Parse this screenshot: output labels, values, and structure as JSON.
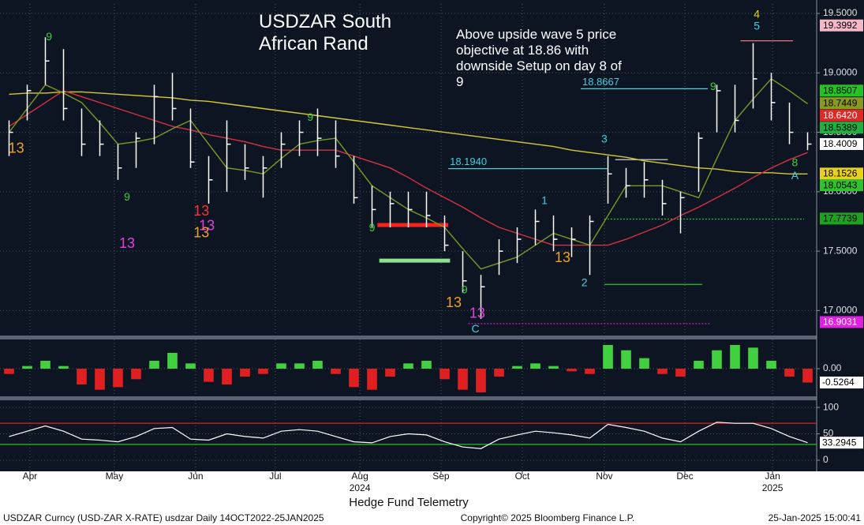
{
  "chart_data": [
    {
      "type": "ohlc",
      "title": "USDZAR South African Rand",
      "annotation": "Above upside wave 5 price objective at 18.86 with downside Setup on day 8 of 9",
      "xlim": [
        -0.5,
        44.5
      ],
      "ylim": [
        16.79,
        19.58
      ],
      "yticks": [
        {
          "value": 17,
          "label": "17.0000"
        },
        {
          "value": 17.5,
          "label": "17.5000"
        },
        {
          "value": 18,
          "label": "18.0000"
        },
        {
          "value": 18.5,
          "label": "18.5000"
        },
        {
          "value": 19,
          "label": "19.0000"
        },
        {
          "value": 19.5,
          "label": "19.5000"
        }
      ],
      "grid": true,
      "bar_color": "#ffffff",
      "x": [
        0,
        1,
        2,
        3,
        4,
        5,
        6,
        7,
        8,
        9,
        10,
        11,
        12,
        13,
        14,
        15,
        16,
        17,
        18,
        19,
        20,
        21,
        22,
        23,
        24,
        25,
        26,
        27,
        28,
        29,
        30,
        31,
        32,
        33,
        34,
        35,
        36,
        37,
        38,
        39,
        40,
        41,
        42,
        43,
        44
      ],
      "high": [
        18.6,
        18.9,
        19.3,
        19.2,
        18.7,
        18.6,
        18.4,
        18.5,
        18.9,
        19.0,
        18.7,
        18.3,
        18.6,
        18.4,
        18.3,
        18.5,
        18.6,
        18.7,
        18.6,
        18.3,
        18.05,
        18.0,
        18.0,
        18.0,
        17.8,
        17.5,
        17.3,
        17.6,
        17.7,
        17.85,
        17.8,
        17.7,
        17.8,
        18.3,
        18.2,
        18.25,
        18.1,
        18.0,
        18.5,
        18.9,
        18.9,
        19.25,
        19.0,
        18.75,
        18.5
      ],
      "low": [
        18.3,
        18.6,
        18.9,
        18.6,
        18.3,
        18.3,
        18.1,
        18.2,
        18.4,
        18.6,
        18.2,
        17.9,
        18.0,
        18.1,
        17.95,
        18.2,
        18.3,
        18.3,
        18.2,
        17.9,
        17.7,
        17.7,
        17.7,
        17.7,
        17.5,
        17.15,
        16.93,
        17.3,
        17.4,
        17.55,
        17.5,
        17.45,
        17.3,
        17.9,
        17.95,
        17.95,
        17.8,
        17.65,
        18.0,
        18.5,
        18.5,
        18.7,
        18.6,
        18.4,
        18.35
      ],
      "close": [
        18.5,
        18.85,
        19.1,
        18.7,
        18.4,
        18.4,
        18.2,
        18.45,
        18.8,
        18.7,
        18.25,
        18.1,
        18.4,
        18.2,
        18.2,
        18.4,
        18.5,
        18.45,
        18.3,
        17.95,
        17.85,
        17.9,
        17.85,
        17.8,
        17.55,
        17.25,
        17.2,
        17.5,
        17.6,
        17.75,
        17.6,
        17.6,
        17.75,
        18.15,
        18.05,
        18.1,
        17.9,
        17.95,
        18.45,
        18.85,
        18.6,
        18.95,
        18.75,
        18.5,
        18.4009
      ],
      "series": [
        {
          "color": "#d8c832",
          "values": [
            18.82,
            18.83,
            18.83,
            18.84,
            18.84,
            18.83,
            18.82,
            18.81,
            18.8,
            18.79,
            18.77,
            18.76,
            18.74,
            18.72,
            18.7,
            18.68,
            18.66,
            18.64,
            18.62,
            18.6,
            18.58,
            18.56,
            18.54,
            18.52,
            18.5,
            18.48,
            18.46,
            18.44,
            18.42,
            18.4,
            18.38,
            18.35,
            18.33,
            18.31,
            18.29,
            18.26,
            18.24,
            18.22,
            18.2,
            18.19,
            18.17,
            18.16,
            18.16,
            18.15,
            18.15
          ]
        },
        {
          "color": "#d83040",
          "values": [
            18.55,
            18.65,
            18.75,
            18.85,
            18.8,
            18.75,
            18.7,
            18.65,
            18.6,
            18.55,
            18.52,
            18.48,
            18.45,
            18.42,
            18.38,
            18.35,
            18.35,
            18.35,
            18.35,
            18.3,
            18.25,
            18.2,
            18.12,
            18.03,
            17.95,
            17.87,
            17.78,
            17.7,
            17.65,
            17.6,
            17.55,
            17.55,
            17.55,
            17.55,
            17.6,
            17.66,
            17.72,
            17.8,
            17.87,
            17.95,
            18.03,
            18.12,
            18.2,
            18.27,
            18.33
          ]
        },
        {
          "color": "#7a9a28",
          "values": [
            18.5,
            18.7,
            18.9,
            18.83,
            18.75,
            18.58,
            18.4,
            18.42,
            18.45,
            18.53,
            18.6,
            18.4,
            18.2,
            18.18,
            18.15,
            18.28,
            18.4,
            18.43,
            18.45,
            18.25,
            18.05,
            17.95,
            17.85,
            17.78,
            17.7,
            17.52,
            17.35,
            17.4,
            17.45,
            17.55,
            17.65,
            17.6,
            17.55,
            17.8,
            18.05,
            18.05,
            18.05,
            18.0,
            17.95,
            18.28,
            18.6,
            18.78,
            18.95,
            18.85,
            18.74
          ]
        }
      ],
      "levels": [
        {
          "value": 18.8667,
          "x0": 31.5,
          "x1": 38.5,
          "color": "#40d0e0",
          "style": "solid",
          "label": "18.8667"
        },
        {
          "value": 18.194,
          "x0": 24.2,
          "x1": 33,
          "color": "#40d0e0",
          "style": "solid",
          "label": "18.1940"
        },
        {
          "value": 17.72,
          "x0": 20.3,
          "x1": 24.2,
          "color": "#ff2020",
          "style": "thick"
        },
        {
          "value": 17.42,
          "x0": 20.4,
          "x1": 24.3,
          "color": "#90e090",
          "style": "thick"
        },
        {
          "value": 16.89,
          "x0": 25.3,
          "x1": 38.6,
          "color": "#e020e0",
          "style": "dotted"
        },
        {
          "value": 17.77,
          "x0": 32.8,
          "x1": 43.8,
          "color": "#30c030",
          "style": "dotted"
        },
        {
          "value": 17.22,
          "x0": 32.8,
          "x1": 38.2,
          "color": "#30c030",
          "style": "solid"
        },
        {
          "value": 18.27,
          "x0": 33.4,
          "x1": 36.3,
          "color": "#e8e8e8",
          "style": "solid"
        },
        {
          "value": 19.27,
          "x0": 40.3,
          "x1": 43.2,
          "color": "#ff8080",
          "style": "solid"
        }
      ],
      "annotations": [
        {
          "text": "9",
          "x": 2.2,
          "y": 19.3,
          "color": "#3cd13c"
        },
        {
          "text": "13",
          "x": 0.4,
          "y": 18.36,
          "color": "#f0a030"
        },
        {
          "text": "9",
          "x": 6.5,
          "y": 17.95,
          "color": "#3cd13c"
        },
        {
          "text": "13",
          "x": 6.5,
          "y": 17.56,
          "color": "#e040e0"
        },
        {
          "text": "13",
          "x": 10.6,
          "y": 17.83,
          "color": "#ff3030"
        },
        {
          "text": "13",
          "x": 10.9,
          "y": 17.71,
          "color": "#e040e0"
        },
        {
          "text": "13",
          "x": 10.6,
          "y": 17.65,
          "color": "#f0a030"
        },
        {
          "text": "9",
          "x": 16.6,
          "y": 18.62,
          "color": "#3cd13c"
        },
        {
          "text": "9",
          "x": 20.0,
          "y": 17.69,
          "color": "#3cd13c"
        },
        {
          "text": "9",
          "x": 25.1,
          "y": 17.17,
          "color": "#3cd13c"
        },
        {
          "text": "13",
          "x": 24.5,
          "y": 17.06,
          "color": "#f0a030"
        },
        {
          "text": "13",
          "x": 25.8,
          "y": 16.97,
          "color": "#e040e0"
        },
        {
          "text": "C",
          "x": 25.7,
          "y": 16.84,
          "color": "#40d0e0"
        },
        {
          "text": "1",
          "x": 29.5,
          "y": 17.92,
          "color": "#40d0e0"
        },
        {
          "text": "13",
          "x": 30.5,
          "y": 17.44,
          "color": "#f0a030"
        },
        {
          "text": "2",
          "x": 31.7,
          "y": 17.23,
          "color": "#40d0e0"
        },
        {
          "text": "3",
          "x": 32.8,
          "y": 18.44,
          "color": "#40d0e0"
        },
        {
          "text": "9",
          "x": 38.8,
          "y": 18.88,
          "color": "#3cd13c"
        },
        {
          "text": "4",
          "x": 41.2,
          "y": 19.49,
          "color": "#e0d020"
        },
        {
          "text": "5",
          "x": 41.2,
          "y": 19.39,
          "color": "#40d0e0"
        },
        {
          "text": "8",
          "x": 43.3,
          "y": 18.24,
          "color": "#3cd13c"
        },
        {
          "text": "A",
          "x": 43.3,
          "y": 18.13,
          "color": "#40d0e0"
        }
      ],
      "price_labels": [
        {
          "value": 19.3992,
          "color": "#f4b8c8",
          "text_color": "#000000"
        },
        {
          "value": 18.8507,
          "color": "#22c322",
          "text_color": "#000000"
        },
        {
          "value": 18.7449,
          "color": "#8a9a20",
          "text_color": "#000000"
        },
        {
          "value": {
            "value": 18.642,
            "label": "18.6420"
          },
          "color": "#e02828",
          "text_color": "#ffffff"
        },
        {
          "value": 18.5389,
          "color": "#20b040",
          "text_color": "#000000"
        },
        {
          "value": 18.4009,
          "color": "#ffffff",
          "text_color": "#000000"
        },
        {
          "value": 18.1526,
          "color": "#e8d020",
          "text_color": "#000000"
        },
        {
          "value": 18.0543,
          "color": "#30c030",
          "text_color": "#000000"
        },
        {
          "value": 17.7739,
          "color": "#20a020",
          "text_color": "#000000"
        },
        {
          "value": 16.9031,
          "color": "#e020e0",
          "text_color": "#ffffff"
        }
      ]
    },
    {
      "type": "bar",
      "xlim": [
        -0.5,
        44.5
      ],
      "ylim": [
        -1.05,
        1.11
      ],
      "yticks": [
        {
          "value": 0,
          "label": "0.00"
        }
      ],
      "grid": true,
      "positive_color": "#40d040",
      "negative_color": "#e02020",
      "x": [
        0,
        1,
        2,
        3,
        4,
        5,
        6,
        7,
        8,
        9,
        10,
        11,
        12,
        13,
        14,
        15,
        16,
        17,
        18,
        19,
        20,
        21,
        22,
        23,
        24,
        25,
        26,
        27,
        28,
        29,
        30,
        31,
        32,
        33,
        34,
        35,
        36,
        37,
        38,
        39,
        40,
        41,
        42,
        43,
        44
      ],
      "values": [
        -0.2,
        0.1,
        0.3,
        0.1,
        -0.6,
        -0.8,
        -0.7,
        -0.4,
        0.3,
        0.6,
        0.2,
        -0.5,
        -0.6,
        -0.3,
        -0.2,
        0.2,
        0.2,
        0.3,
        -0.2,
        -0.7,
        -0.8,
        -0.3,
        0.2,
        0.3,
        -0.4,
        -0.8,
        -0.9,
        -0.3,
        0.1,
        0.2,
        0.1,
        -0.1,
        -0.2,
        0.9,
        0.7,
        0.4,
        -0.2,
        -0.3,
        0.3,
        0.7,
        0.9,
        0.8,
        0.3,
        -0.3,
        -0.5264
      ],
      "last_label": -0.5264
    },
    {
      "type": "line",
      "xlim": [
        -0.5,
        44.5
      ],
      "ylim": [
        -21,
        113.6
      ],
      "yticks": [
        0,
        50,
        100
      ],
      "grid": true,
      "color": "#ffffff",
      "x": [
        0,
        1,
        2,
        3,
        4,
        5,
        6,
        7,
        8,
        9,
        10,
        11,
        12,
        13,
        14,
        15,
        16,
        17,
        18,
        19,
        20,
        21,
        22,
        23,
        24,
        25,
        26,
        27,
        28,
        29,
        30,
        31,
        32,
        33,
        34,
        35,
        36,
        37,
        38,
        39,
        40,
        41,
        42,
        43,
        44
      ],
      "values": [
        45,
        55,
        65,
        55,
        40,
        38,
        35,
        45,
        60,
        62,
        40,
        38,
        50,
        45,
        42,
        55,
        58,
        55,
        45,
        35,
        33,
        45,
        50,
        48,
        35,
        25,
        22,
        40,
        48,
        55,
        52,
        48,
        42,
        68,
        62,
        55,
        42,
        35,
        55,
        72,
        70,
        70,
        60,
        45,
        33.2945
      ],
      "levels": [
        {
          "value": 70,
          "color": "#e02020"
        },
        {
          "value": 30,
          "color": "#20c020"
        }
      ],
      "last_label": 33.2945,
      "xticks": [
        {
          "value": 1.15,
          "label": "Apr"
        },
        {
          "value": 5.8,
          "label": "May"
        },
        {
          "value": 10.28,
          "label": "Jun"
        },
        {
          "value": 14.67,
          "label": "Jul"
        },
        {
          "value": 19.33,
          "label": "Aug"
        },
        {
          "value": 23.8,
          "label": "Sep"
        },
        {
          "value": 28.28,
          "label": "Oct"
        },
        {
          "value": 32.8,
          "label": "Nov"
        },
        {
          "value": 37.24,
          "label": "Dec"
        },
        {
          "value": 42.07,
          "label": "Jan"
        }
      ],
      "year_ticks": [
        {
          "value": 19.33,
          "label": "2024"
        },
        {
          "value": 42.07,
          "label": "2025"
        }
      ]
    }
  ],
  "footer": {
    "caption": "Hedge Fund Telemetry",
    "left": "USDZAR Curncy (USD-ZAR X-RATE) usdzar  Daily 14OCT2022-25JAN2025",
    "center": "Copyright© 2025 Bloomberg Finance L.P.",
    "right": "25-Jan-2025 15:00:41"
  }
}
